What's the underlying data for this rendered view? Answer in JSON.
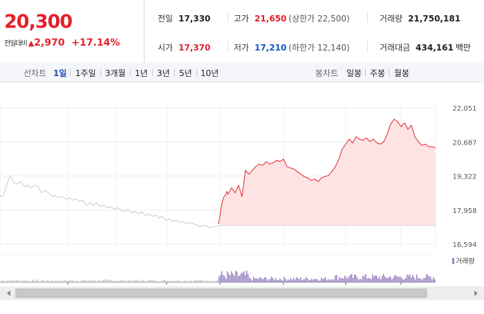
{
  "quote": {
    "price": "20,300",
    "change_label": "전일대비",
    "change_arrow": "▲",
    "change_amount": "2,970",
    "change_percent": "+17.14%"
  },
  "stats": {
    "prev_close": {
      "label": "전일",
      "value": "17,330"
    },
    "open": {
      "label": "시가",
      "value": "17,370"
    },
    "high": {
      "label": "고가",
      "value": "21,650",
      "note": "(상한가 22,500)"
    },
    "low": {
      "label": "저가",
      "value": "17,210",
      "note": "(하한가 12,140)"
    },
    "volume": {
      "label": "거래량",
      "value": "21,750,181"
    },
    "amount": {
      "label": "거래대금",
      "value": "434,161",
      "unit": "백만"
    }
  },
  "toolbar": {
    "line_chart_label": "선차트",
    "periods": [
      "1일",
      "1주일",
      "3개월",
      "1년",
      "3년",
      "5년",
      "10년"
    ],
    "active_period": "1일",
    "candle_chart_label": "봉차트",
    "candles": [
      "일봉",
      "주봉",
      "월봉"
    ]
  },
  "colors": {
    "up": "#e4202a",
    "down": "#1356c9",
    "active_tab": "#1e4fb8",
    "area_fill": "#fde3e3",
    "prev_line": "#c8c8c8",
    "volume_bar": "#9a83c4"
  },
  "chart_data": {
    "type": "line",
    "y_ticks": [
      "22,051",
      "20,687",
      "19,322",
      "17,958",
      "16,594"
    ],
    "ylim": [
      16594,
      22051
    ],
    "volume_legend": "거래량",
    "reference_price": 17330,
    "grid": true,
    "series": [
      {
        "x": [
          0,
          5,
          10,
          15,
          20,
          25,
          30,
          35,
          40,
          45,
          50,
          55,
          60,
          65,
          70,
          75,
          80,
          85,
          90,
          95,
          100,
          105,
          110,
          115,
          120,
          125,
          130,
          135,
          140,
          145,
          150,
          155,
          160,
          165,
          170,
          175,
          180,
          185,
          190,
          195,
          200,
          205,
          210,
          215,
          220,
          225,
          230,
          235,
          240,
          245,
          250,
          255,
          260,
          265,
          270,
          275,
          280,
          285,
          290,
          295,
          300,
          305,
          310,
          315
        ],
        "y": [
          18500,
          18550,
          19000,
          19350,
          19050,
          19000,
          19100,
          18900,
          18950,
          18850,
          18950,
          18900,
          18650,
          18750,
          18650,
          18500,
          18550,
          18450,
          18500,
          18400,
          18450,
          18350,
          18400,
          18300,
          18350,
          18150,
          18250,
          18150,
          18250,
          18100,
          18150,
          18050,
          18100,
          18000,
          18050,
          17950,
          17900,
          18000,
          17850,
          17900,
          17800,
          17900,
          17750,
          17800,
          17700,
          17750,
          17650,
          17700,
          17550,
          17600,
          17500,
          17550,
          17450,
          17500,
          17400,
          17450,
          17400,
          17350,
          17300,
          17350,
          17300,
          17250,
          17300,
          17330
        ]
      },
      {
        "x": [
          316,
          318,
          320,
          322,
          324,
          326,
          328,
          330,
          335,
          340,
          345,
          350,
          355,
          360,
          365,
          370,
          375,
          380,
          385,
          390,
          395,
          400,
          405,
          410,
          415,
          420,
          425,
          430,
          435,
          440,
          445,
          450,
          455,
          460,
          465,
          470,
          475,
          480,
          485,
          490,
          495,
          500,
          505,
          510,
          515,
          520,
          525,
          530,
          535,
          540,
          545,
          550,
          555,
          560,
          565,
          570,
          575,
          580,
          585,
          590,
          595,
          600,
          605,
          610,
          615,
          620,
          625,
          630
        ],
        "y": [
          17400,
          17700,
          18100,
          18350,
          18500,
          18550,
          18700,
          18600,
          18850,
          18650,
          18950,
          18500,
          19550,
          19400,
          19550,
          19700,
          19800,
          19750,
          19900,
          19800,
          19850,
          19950,
          19900,
          20000,
          19700,
          19650,
          19600,
          19500,
          19400,
          19300,
          19250,
          19150,
          19200,
          19100,
          19250,
          19300,
          19350,
          19500,
          19700,
          20000,
          20400,
          20600,
          20800,
          20650,
          20900,
          20800,
          20750,
          20850,
          20700,
          20800,
          20650,
          20600,
          20700,
          21000,
          21400,
          21600,
          21500,
          21300,
          21450,
          21200,
          21350,
          20900,
          20700,
          20550,
          20600,
          20500,
          20500,
          20450
        ]
      }
    ]
  }
}
